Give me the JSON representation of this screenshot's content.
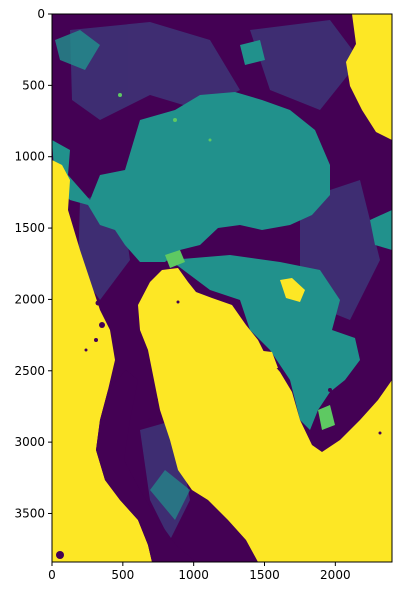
{
  "chart_data": {
    "type": "heatmap",
    "title": "",
    "xlabel": "",
    "ylabel": "",
    "xlim": [
      0,
      2400
    ],
    "ylim": [
      3840,
      0
    ],
    "xticks": [
      0,
      500,
      1000,
      1500,
      2000
    ],
    "yticks": [
      0,
      500,
      1000,
      1500,
      2000,
      2500,
      3000,
      3500
    ],
    "colormap": "viridis",
    "class_colors": [
      "#440154",
      "#3b528b",
      "#21918c",
      "#5ec962",
      "#fde725"
    ],
    "grid": false,
    "legend": "none"
  }
}
